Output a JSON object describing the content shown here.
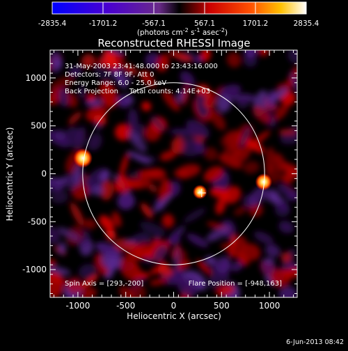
{
  "chart_data": {
    "type": "heatmap",
    "title": "Reconstructed RHESSI Image",
    "xlabel": "Heliocentric X (arcsec)",
    "ylabel": "Heliocentric Y (arcsec)",
    "xlim": [
      -1290,
      1290
    ],
    "ylim": [
      -1290,
      1290
    ],
    "x_ticks": [
      "-1000",
      "-500",
      "0",
      "500",
      "1000"
    ],
    "y_ticks": [
      "-1000",
      "-500",
      "0",
      "500",
      "1000"
    ],
    "colorbar": {
      "min": -2835.4,
      "max": 2835.4,
      "tick_labels": [
        "-2835.4",
        "-1701.2",
        "-567.1",
        "567.1",
        "1701.2",
        "2835.4"
      ],
      "units_prefix": "(photons cm",
      "units_sup1": "-2",
      "units_mid1": " s",
      "units_sup2": "-1",
      "units_mid2": " asec",
      "units_sup3": "-2",
      "units_suffix": ")"
    },
    "info_lines": [
      "31-May-2003 23:41:48.000 to 23:43:16.000",
      "Detectors: 7F 8F 9F, Att 0",
      "Energy Range: 6.0 - 25.0 keV",
      "Back Projection     Total counts: 4.14E+03"
    ],
    "spin_axis_text": "Spin Axis = [293,-200]",
    "flare_position_text": "Flare Position = [-948,163]",
    "solar_limb_radius": 950,
    "spin_axis": [
      293,
      -200
    ],
    "sources": [
      {
        "x": -948,
        "y": 163,
        "intensity": 2835
      },
      {
        "x": 940,
        "y": -85,
        "intensity": 2300
      },
      {
        "x": 275,
        "y": -190,
        "intensity": 1700
      }
    ]
  },
  "footer_date": "6-Jun-2013 08:42"
}
